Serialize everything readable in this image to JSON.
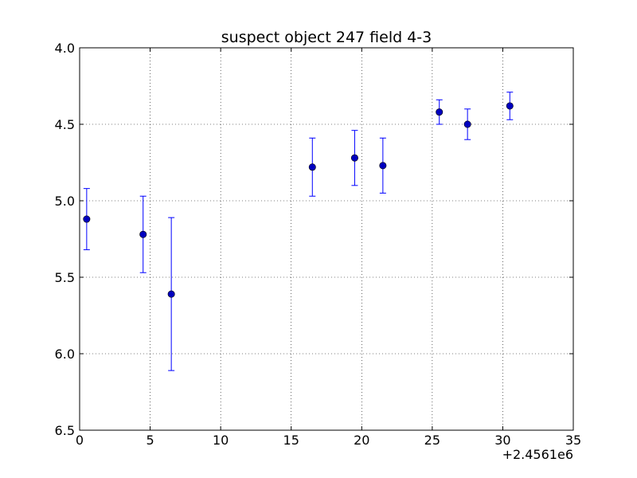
{
  "chart_data": {
    "type": "scatter",
    "title": "suspect object 247 field 4-3",
    "xlabel": "",
    "ylabel": "",
    "x_offset_label": "+2.4561e6",
    "xlim": [
      0,
      35
    ],
    "ylim": [
      4.0,
      6.5
    ],
    "y_inverted": true,
    "grid": true,
    "legend": "none",
    "x_ticks": [
      0,
      5,
      10,
      15,
      20,
      25,
      30,
      35
    ],
    "x_tick_labels": [
      "0",
      "5",
      "10",
      "15",
      "20",
      "25",
      "30",
      "35"
    ],
    "y_ticks": [
      4.0,
      4.5,
      5.0,
      5.5,
      6.0,
      6.5
    ],
    "y_tick_labels": [
      "4.0",
      "4.5",
      "5.0",
      "5.5",
      "6.0",
      "6.5"
    ],
    "series": [
      {
        "marker_color": "#0000bf",
        "errorbar_color": "#0000ff",
        "points": [
          {
            "x": 0.5,
            "y": 5.12,
            "err": 0.2
          },
          {
            "x": 4.5,
            "y": 5.22,
            "err": 0.25
          },
          {
            "x": 6.5,
            "y": 5.61,
            "err": 0.5
          },
          {
            "x": 16.5,
            "y": 4.78,
            "err": 0.19
          },
          {
            "x": 19.5,
            "y": 4.72,
            "err": 0.18
          },
          {
            "x": 21.5,
            "y": 4.77,
            "err": 0.18
          },
          {
            "x": 25.5,
            "y": 4.42,
            "err": 0.08
          },
          {
            "x": 27.5,
            "y": 4.5,
            "err": 0.1
          },
          {
            "x": 30.5,
            "y": 4.38,
            "err": 0.09
          }
        ]
      }
    ]
  }
}
